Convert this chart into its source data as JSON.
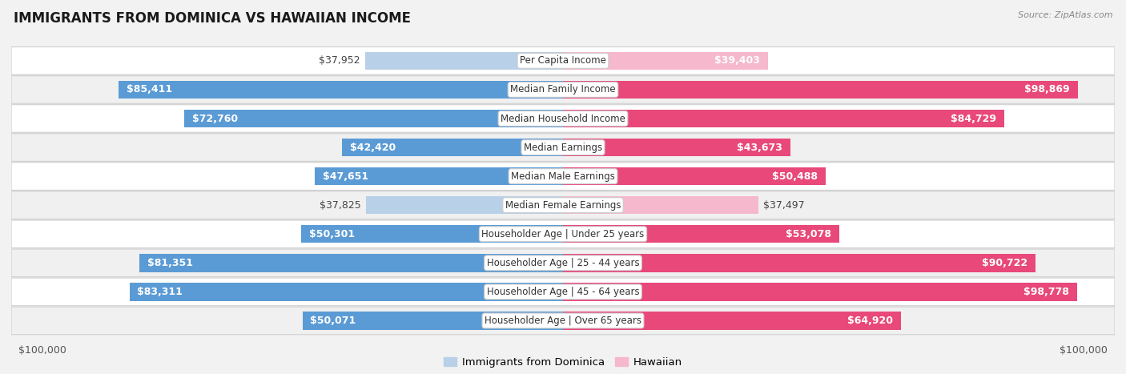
{
  "title": "IMMIGRANTS FROM DOMINICA VS HAWAIIAN INCOME",
  "source": "Source: ZipAtlas.com",
  "categories": [
    "Per Capita Income",
    "Median Family Income",
    "Median Household Income",
    "Median Earnings",
    "Median Male Earnings",
    "Median Female Earnings",
    "Householder Age | Under 25 years",
    "Householder Age | 25 - 44 years",
    "Householder Age | 45 - 64 years",
    "Householder Age | Over 65 years"
  ],
  "dominica_values": [
    37952,
    85411,
    72760,
    42420,
    47651,
    37825,
    50301,
    81351,
    83311,
    50071
  ],
  "hawaiian_values": [
    39403,
    98869,
    84729,
    43673,
    50488,
    37497,
    53078,
    90722,
    98778,
    64920
  ],
  "dominica_labels": [
    "$37,952",
    "$85,411",
    "$72,760",
    "$42,420",
    "$47,651",
    "$37,825",
    "$50,301",
    "$81,351",
    "$83,311",
    "$50,071"
  ],
  "hawaiian_labels": [
    "$39,403",
    "$98,869",
    "$84,729",
    "$43,673",
    "$50,488",
    "$37,497",
    "$53,078",
    "$90,722",
    "$98,778",
    "$64,920"
  ],
  "max_value": 100000,
  "dominica_color_light": "#b8d0e8",
  "dominica_color_dark": "#5b9bd5",
  "hawaiian_color_light": "#f5b8cc",
  "hawaiian_color_dark": "#e8487a",
  "bg_color": "#f2f2f2",
  "row_bg_even": "#ffffff",
  "row_bg_odd": "#f0f0f0",
  "bar_height": 0.62,
  "label_fontsize": 9.0,
  "title_fontsize": 12,
  "legend_fontsize": 9.5,
  "axis_fontsize": 9,
  "threshold_dark": 40000,
  "dominica_dark_indices": [
    1,
    2,
    7,
    8
  ],
  "hawaiian_dark_indices": [
    1,
    2,
    7,
    8
  ]
}
